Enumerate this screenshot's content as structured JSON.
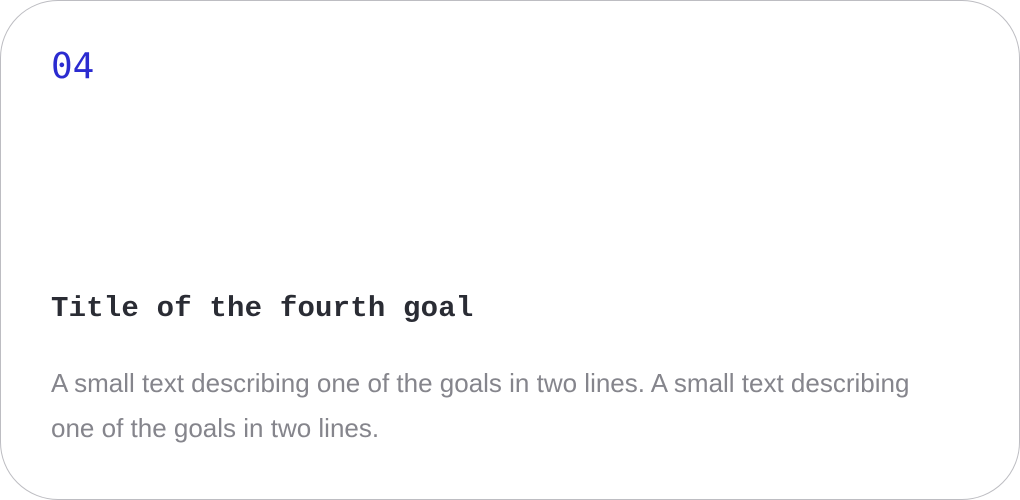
{
  "goal": {
    "number": "04",
    "title": "Title of the fourth goal",
    "description": "A small text describing one of the goals in two lines. A small text describing one of the goals in two lines."
  },
  "colors": {
    "accent": "#2b2bd0",
    "title": "#2a2c34",
    "body": "#85858c",
    "border": "#bdbdc2",
    "background": "#ffffff"
  }
}
